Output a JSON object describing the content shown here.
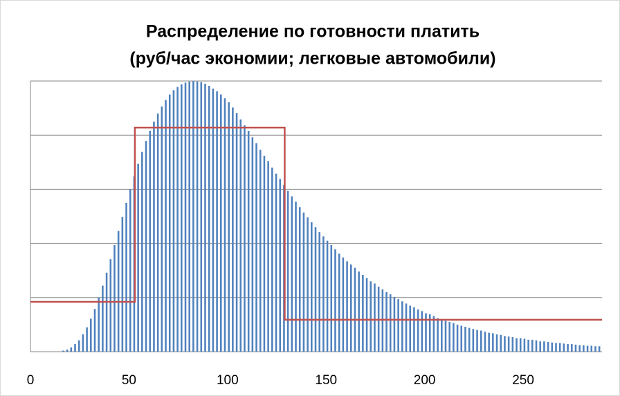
{
  "chart_data": {
    "type": "bar",
    "title": [
      "Распределение по готовности платить",
      "(руб/час экономии; легковые автомобили)"
    ],
    "xlim": [
      0,
      290
    ],
    "xticks": [
      0,
      50,
      100,
      150,
      200,
      250
    ],
    "ylim": [
      0,
      5
    ],
    "yticks": [
      0,
      1,
      2,
      3,
      4,
      5
    ],
    "grid": true,
    "series": [
      {
        "type": "bar",
        "color": "#4f81bd",
        "x": [
          0,
          2,
          4,
          6,
          8,
          10,
          12,
          14,
          16,
          18,
          20,
          22,
          24,
          26,
          28,
          30,
          32,
          34,
          36,
          38,
          40,
          42,
          44,
          46,
          48,
          50,
          52,
          54,
          56,
          58,
          60,
          62,
          64,
          66,
          68,
          70,
          72,
          74,
          76,
          78,
          80,
          82,
          84,
          86,
          88,
          90,
          92,
          94,
          96,
          98,
          100,
          102,
          104,
          106,
          108,
          110,
          112,
          114,
          116,
          118,
          120,
          122,
          124,
          126,
          128,
          130,
          132,
          134,
          136,
          138,
          140,
          142,
          144,
          146,
          148,
          150,
          152,
          154,
          156,
          158,
          160,
          162,
          164,
          166,
          168,
          170,
          172,
          174,
          176,
          178,
          180,
          182,
          184,
          186,
          188,
          190,
          192,
          194,
          196,
          198,
          200,
          202,
          204,
          206,
          208,
          210,
          212,
          214,
          216,
          218,
          220,
          222,
          224,
          226,
          228,
          230,
          232,
          234,
          236,
          238,
          240,
          242,
          244,
          246,
          248,
          250,
          252,
          254,
          256,
          258,
          260,
          262,
          264,
          266,
          268,
          270,
          272,
          274,
          276,
          278,
          280,
          282,
          284,
          286,
          288
        ],
        "values": [
          0,
          0,
          0,
          0,
          0,
          0,
          0,
          0,
          0.02,
          0.04,
          0.08,
          0.14,
          0.21,
          0.32,
          0.45,
          0.61,
          0.79,
          1.0,
          1.22,
          1.46,
          1.71,
          1.97,
          2.23,
          2.49,
          2.75,
          3.0,
          3.24,
          3.47,
          3.69,
          3.89,
          4.08,
          4.25,
          4.4,
          4.53,
          4.65,
          4.75,
          4.83,
          4.89,
          4.94,
          4.97,
          4.99,
          5.0,
          4.99,
          4.98,
          4.95,
          4.91,
          4.86,
          4.81,
          4.75,
          4.68,
          4.61,
          4.51,
          4.41,
          4.29,
          4.18,
          4.08,
          3.96,
          3.85,
          3.73,
          3.62,
          3.52,
          3.4,
          3.29,
          3.19,
          3.08,
          2.97,
          2.87,
          2.77,
          2.67,
          2.57,
          2.48,
          2.39,
          2.3,
          2.21,
          2.13,
          2.05,
          1.97,
          1.89,
          1.81,
          1.74,
          1.67,
          1.61,
          1.55,
          1.48,
          1.42,
          1.36,
          1.3,
          1.26,
          1.2,
          1.15,
          1.1,
          1.06,
          1.01,
          0.97,
          0.93,
          0.89,
          0.85,
          0.82,
          0.78,
          0.75,
          0.71,
          0.69,
          0.66,
          0.62,
          0.6,
          0.57,
          0.55,
          0.53,
          0.5,
          0.48,
          0.46,
          0.44,
          0.42,
          0.4,
          0.39,
          0.37,
          0.35,
          0.34,
          0.32,
          0.31,
          0.29,
          0.28,
          0.27,
          0.25,
          0.25,
          0.24,
          0.22,
          0.22,
          0.21,
          0.19,
          0.19,
          0.18,
          0.17,
          0.16,
          0.16,
          0.15,
          0.14,
          0.14,
          0.13,
          0.12,
          0.12,
          0.11,
          0.11,
          0.1,
          0.1
        ]
      },
      {
        "type": "line",
        "color": "#c0504d",
        "x": [
          0,
          53,
          53,
          129,
          129,
          290
        ],
        "values": [
          0.92,
          0.92,
          4.14,
          4.14,
          0.59,
          0.59
        ]
      }
    ]
  }
}
